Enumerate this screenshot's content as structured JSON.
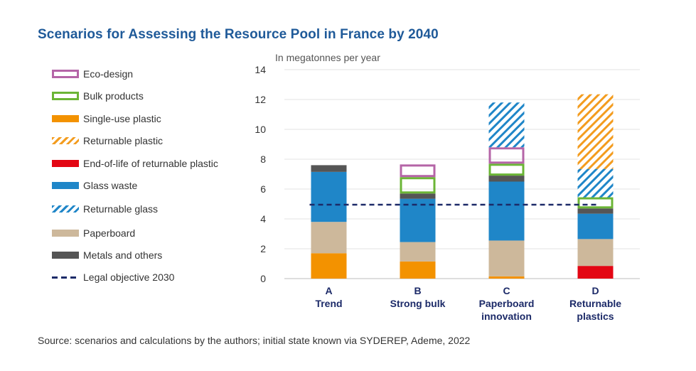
{
  "title": "Scenarios for Assessing the Resource Pool in France by 2040",
  "source": "Source: scenarios and calculations by the authors; initial state known via SYDEREP, Ademe, 2022",
  "colors": {
    "eco_design": "#b565a7",
    "bulk": "#6bb536",
    "single_use_plastic": "#f39200",
    "returnable_plastic": "#f39c1f",
    "end_of_life_plastic": "#e30613",
    "glass_waste": "#1f86c8",
    "returnable_glass": "#1f86c8",
    "paperboard": "#cdb89b",
    "metals": "#555555",
    "objective": "#1c2a68",
    "title": "#1f5a99",
    "category": "#1c2a68"
  },
  "legend": [
    {
      "key": "eco_design",
      "label": "Eco-design",
      "style": "outline"
    },
    {
      "key": "bulk",
      "label": "Bulk products",
      "style": "outline"
    },
    {
      "key": "single_use_plastic",
      "label": "Single-use plastic",
      "style": "solid"
    },
    {
      "key": "returnable_plastic",
      "label": "Returnable plastic",
      "style": "hatch"
    },
    {
      "key": "end_of_life_plastic",
      "label": "End-of-life of returnable plastic",
      "style": "solid"
    },
    {
      "key": "glass_waste",
      "label": "Glass waste",
      "style": "solid"
    },
    {
      "key": "returnable_glass",
      "label": "Returnable glass",
      "style": "hatch"
    },
    {
      "key": "paperboard",
      "label": "Paperboard",
      "style": "solid"
    },
    {
      "key": "metals",
      "label": "Metals and others",
      "style": "solid"
    },
    {
      "key": "objective",
      "label": "Legal objective 2030",
      "style": "dash"
    }
  ],
  "chart_data": {
    "type": "bar",
    "stacked": true,
    "ylabel": "In megatonnes per year",
    "ylim": [
      0,
      14
    ],
    "yticks": [
      0,
      2,
      4,
      6,
      8,
      10,
      12,
      14
    ],
    "grid": true,
    "legend_position": "left",
    "categories": [
      {
        "letter": "A",
        "name": [
          "Trend"
        ]
      },
      {
        "letter": "B",
        "name": [
          "Strong bulk"
        ]
      },
      {
        "letter": "C",
        "name": [
          "Paperboard",
          "innovation"
        ]
      },
      {
        "letter": "D",
        "name": [
          "Returnable",
          "plastics"
        ]
      }
    ],
    "series": [
      {
        "key": "end_of_life_plastic",
        "name": "End-of-life of returnable plastic",
        "style": "solid",
        "values": [
          0,
          0,
          0,
          0.85
        ]
      },
      {
        "key": "single_use_plastic",
        "name": "Single-use plastic",
        "style": "solid",
        "values": [
          1.7,
          1.15,
          0.15,
          0
        ]
      },
      {
        "key": "paperboard",
        "name": "Paperboard",
        "style": "solid",
        "values": [
          2.1,
          1.3,
          2.4,
          1.8
        ]
      },
      {
        "key": "glass_waste",
        "name": "Glass waste",
        "style": "solid",
        "values": [
          3.35,
          2.9,
          3.95,
          1.7
        ]
      },
      {
        "key": "metals",
        "name": "Metals and others",
        "style": "solid",
        "values": [
          0.45,
          0.35,
          0.4,
          0.35
        ]
      },
      {
        "key": "bulk",
        "name": "Bulk products",
        "style": "outline",
        "values": [
          0,
          1.1,
          0.8,
          0.75
        ]
      },
      {
        "key": "eco_design",
        "name": "Eco-design",
        "style": "outline",
        "values": [
          0,
          0.85,
          1.1,
          0
        ]
      },
      {
        "key": "returnable_glass",
        "name": "Returnable glass",
        "style": "hatch",
        "values": [
          0,
          0,
          3.0,
          1.9
        ]
      },
      {
        "key": "returnable_plastic",
        "name": "Returnable plastic",
        "style": "hatch",
        "values": [
          0,
          0,
          0,
          5.0
        ]
      }
    ],
    "objective": {
      "name": "Legal objective 2030",
      "value": 4.95
    }
  }
}
